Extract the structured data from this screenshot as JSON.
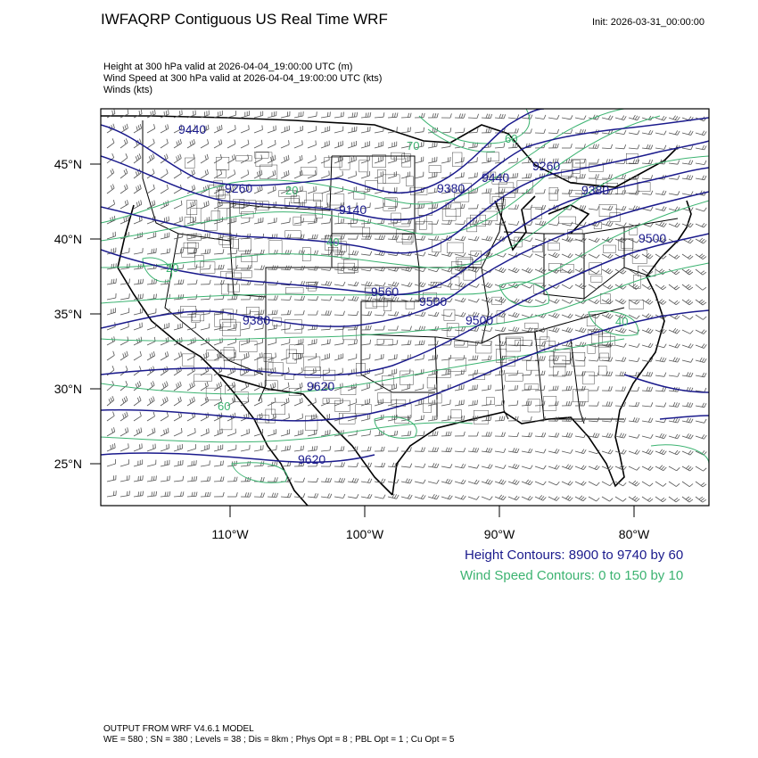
{
  "header": {
    "title": "IWFAQRP Contiguous US Real Time WRF",
    "init": "Init: 2026-03-31_00:00:00",
    "subtitles": [
      "Height at 300 hPa valid at 2026-04-04_19:00:00 UTC   (m)",
      "Wind Speed at 300 hPa valid at 2026-04-04_19:00:00 UTC   (kts)",
      "Winds   (kts)"
    ]
  },
  "axes": {
    "lat_labels": [
      "45°N",
      "40°N",
      "35°N",
      "30°N",
      "25°N"
    ],
    "lon_labels": [
      "110°W",
      "100°W",
      "90°W",
      "80°W"
    ]
  },
  "contour_labels": {
    "height": [
      "9260",
      "9140",
      "9260",
      "9380",
      "9380",
      "9380",
      "9500",
      "9500",
      "9500",
      "9620",
      "9620",
      "9560",
      "9440",
      "9440"
    ],
    "wind": [
      "20",
      "60",
      "20",
      "40",
      "40",
      "60",
      "70"
    ]
  },
  "legend": {
    "height": "Height Contours: 8900 to 9740 by 60",
    "wind": "Wind Speed Contours: 0 to 150 by 10"
  },
  "footer": {
    "line1": "OUTPUT FROM WRF V4.6.1 MODEL",
    "line2": "WE = 580 ; SN = 380 ; Levels = 38 ; Dis = 8km ; Phys Opt = 8 ; PBL Opt = 1 ; Cu Opt = 5"
  },
  "colors": {
    "height_contour": "#1a1a8c",
    "wind_contour": "#3cb371",
    "boundaries": "#000000",
    "barbs": "#555555"
  }
}
